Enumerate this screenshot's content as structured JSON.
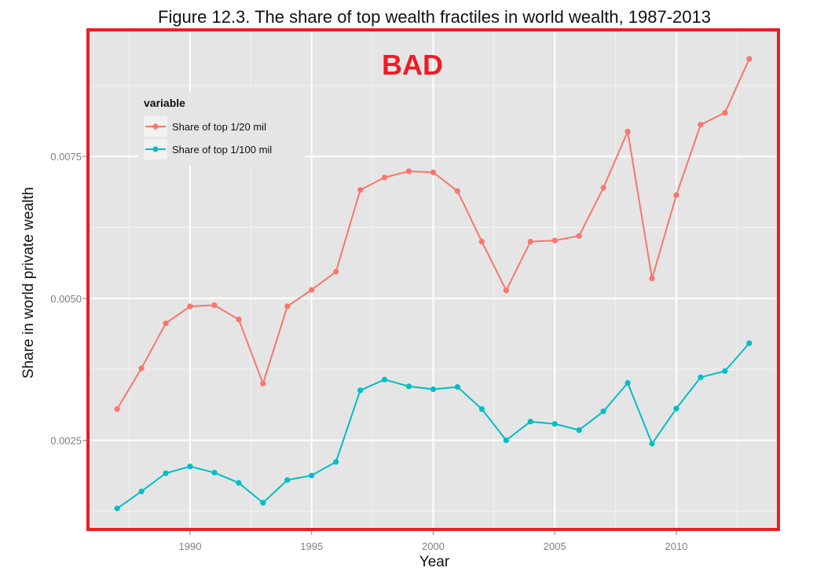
{
  "chart_data": {
    "type": "line",
    "title": "Figure 12.3. The share of top wealth fractiles in world wealth, 1987-2013",
    "xlabel": "Year",
    "ylabel": "Share in world private wealth",
    "xlim": [
      1985.8,
      2014.2
    ],
    "ylim": [
      0.00093,
      0.00973
    ],
    "x_ticks": [
      1990,
      1995,
      2000,
      2005,
      2010
    ],
    "y_ticks": [
      0.0025,
      0.005,
      0.0075
    ],
    "y_tick_labels": [
      "0.0025",
      "0.0050",
      "0.0075"
    ],
    "grid": true,
    "legend": {
      "title": "variable",
      "placement": "top-left inside"
    },
    "annotation": {
      "text": "BAD",
      "color": "#ee1c25"
    },
    "frame_color": "#ee1c25",
    "panel_color": "#e5e5e5",
    "x": [
      1987,
      1988,
      1989,
      1990,
      1991,
      1992,
      1993,
      1994,
      1995,
      1996,
      1997,
      1998,
      1999,
      2000,
      2001,
      2002,
      2003,
      2004,
      2005,
      2006,
      2007,
      2008,
      2009,
      2010,
      2011,
      2012,
      2013
    ],
    "series": [
      {
        "name": "Share of top 1/20 mil",
        "color": "#f8766d",
        "values": [
          0.00305,
          0.00377,
          0.00456,
          0.00486,
          0.00488,
          0.00463,
          0.0035,
          0.00486,
          0.00515,
          0.00547,
          0.00691,
          0.00713,
          0.00724,
          0.00722,
          0.00689,
          0.006,
          0.00514,
          0.006,
          0.00602,
          0.0061,
          0.00695,
          0.00794,
          0.00535,
          0.00682,
          0.00806,
          0.00827,
          0.00922
        ]
      },
      {
        "name": "Share of top 1/100 mil",
        "color": "#00bfc4",
        "values": [
          0.0013,
          0.0016,
          0.00192,
          0.00204,
          0.00193,
          0.00175,
          0.0014,
          0.0018,
          0.00188,
          0.00212,
          0.00338,
          0.00357,
          0.00345,
          0.0034,
          0.00344,
          0.00305,
          0.0025,
          0.00283,
          0.00279,
          0.00268,
          0.00301,
          0.00351,
          0.00244,
          0.00306,
          0.00361,
          0.00372,
          0.00421
        ]
      }
    ]
  }
}
